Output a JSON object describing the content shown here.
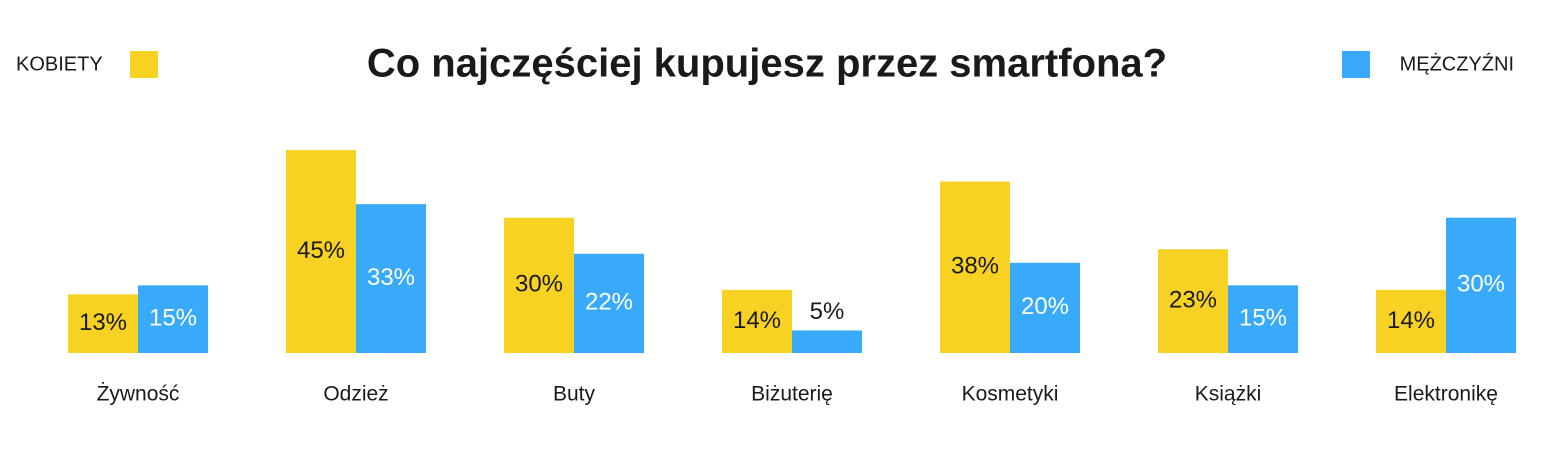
{
  "chart_data": {
    "type": "bar",
    "title": "Co najczęściej kupujesz przez smartfona?",
    "categories": [
      "Żywność",
      "Odzież",
      "Buty",
      "Biżuterię",
      "Kosmetyki",
      "Książki",
      "Elektronikę"
    ],
    "series": [
      {
        "name": "KOBIETY",
        "color": "#F7D223",
        "values": [
          13,
          45,
          30,
          14,
          38,
          23,
          14
        ],
        "value_labels": [
          "13%",
          "45%",
          "30%",
          "14%",
          "38%",
          "23%",
          "14%"
        ]
      },
      {
        "name": "MĘŻCZYŹNI",
        "color": "#38AAF9",
        "values": [
          15,
          33,
          22,
          5,
          20,
          15,
          30
        ],
        "value_labels": [
          "15%",
          "33%",
          "22%",
          "5%",
          "20%",
          "15%",
          "30%"
        ]
      }
    ]
  }
}
